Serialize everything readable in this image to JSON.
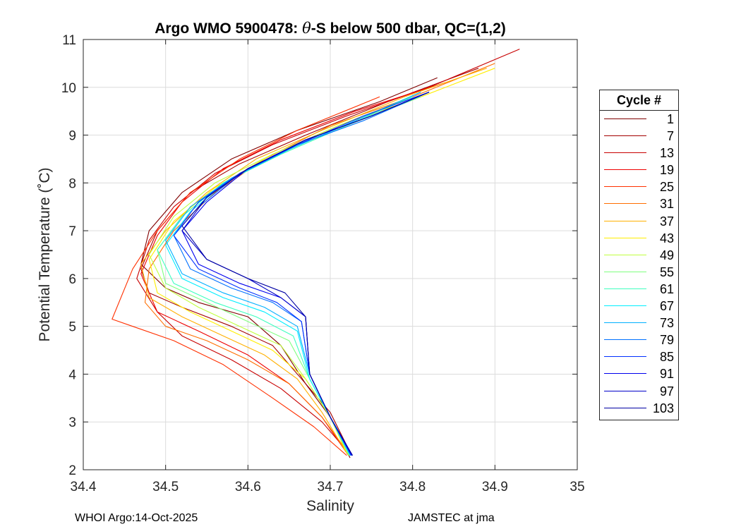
{
  "chart_data": {
    "type": "line",
    "title": "Argo WMO 5900478: θ-S below 500 dbar,  QC=(1,2)",
    "title_prefix": "Argo WMO 5900478: ",
    "title_theta": "θ",
    "title_suffix": "-S below 500 dbar,  QC=(1,2)",
    "xlabel": "Salinity",
    "ylabel": "Potential Temperature (˚C)",
    "xlim": [
      34.4,
      35.0
    ],
    "ylim": [
      2,
      11
    ],
    "xticks": [
      "34.4",
      "34.5",
      "34.6",
      "34.7",
      "34.8",
      "34.9",
      "35"
    ],
    "yticks": [
      "2",
      "3",
      "4",
      "5",
      "6",
      "7",
      "8",
      "9",
      "10",
      "11"
    ],
    "grid": true,
    "colormap": "jet",
    "legend_title": "Cycle #",
    "legend_position": "outside-right",
    "series": [
      {
        "name": "1",
        "color": "#800000",
        "s": [
          34.724,
          34.7,
          34.67,
          34.64,
          34.6,
          34.54,
          34.5,
          34.47,
          34.48,
          34.52,
          34.58,
          34.66,
          34.76,
          34.83
        ],
        "t": [
          2.25,
          3.1,
          3.8,
          4.6,
          5.2,
          5.5,
          5.8,
          6.3,
          7.0,
          7.8,
          8.5,
          9.1,
          9.7,
          10.2
        ]
      },
      {
        "name": "7",
        "color": "#a30000",
        "s": [
          34.726,
          34.7,
          34.665,
          34.63,
          34.58,
          34.52,
          34.48,
          34.47,
          34.49,
          34.53,
          34.59,
          34.67,
          34.77,
          34.88
        ],
        "t": [
          2.3,
          3.2,
          3.9,
          4.6,
          5.0,
          5.4,
          5.7,
          6.2,
          7.0,
          7.8,
          8.4,
          9.0,
          9.7,
          10.4
        ]
      },
      {
        "name": "13",
        "color": "#c80000",
        "s": [
          34.725,
          34.69,
          34.64,
          34.58,
          34.52,
          34.49,
          34.465,
          34.48,
          34.51,
          34.56,
          34.63,
          34.72,
          34.82,
          34.93
        ],
        "t": [
          2.3,
          3.0,
          3.7,
          4.3,
          4.8,
          5.3,
          6.0,
          6.8,
          7.5,
          8.2,
          8.8,
          9.4,
          10.0,
          10.8
        ]
      },
      {
        "name": "19",
        "color": "#ee0000",
        "s": [
          34.722,
          34.69,
          34.65,
          34.6,
          34.54,
          34.49,
          34.47,
          34.49,
          34.52,
          34.57,
          34.64,
          34.73,
          34.84
        ],
        "t": [
          2.3,
          3.1,
          3.8,
          4.4,
          4.9,
          5.3,
          6.1,
          6.9,
          7.6,
          8.3,
          8.9,
          9.5,
          10.1
        ]
      },
      {
        "name": "25",
        "color": "#ff3000",
        "s": [
          34.72,
          34.68,
          34.63,
          34.57,
          34.51,
          34.46,
          34.435,
          34.46,
          34.49,
          34.53,
          34.59,
          34.66,
          34.76
        ],
        "t": [
          2.3,
          2.9,
          3.5,
          4.2,
          4.7,
          5.0,
          5.15,
          6.2,
          7.0,
          7.8,
          8.5,
          9.1,
          9.8
        ]
      },
      {
        "name": "31",
        "color": "#ff6e00",
        "s": [
          34.72,
          34.69,
          34.65,
          34.6,
          34.55,
          34.5,
          34.475,
          34.48,
          34.51,
          34.56,
          34.62,
          34.7,
          34.8,
          34.9
        ],
        "t": [
          2.4,
          3.1,
          3.8,
          4.3,
          4.7,
          5.0,
          5.5,
          6.2,
          7.0,
          7.8,
          8.5,
          9.2,
          9.8,
          10.5
        ]
      },
      {
        "name": "37",
        "color": "#ffb000",
        "s": [
          34.718,
          34.69,
          34.66,
          34.62,
          34.57,
          34.52,
          34.48,
          34.47,
          34.5,
          34.55,
          34.61,
          34.69,
          34.79,
          34.89
        ],
        "t": [
          2.4,
          3.2,
          3.9,
          4.4,
          4.8,
          5.2,
          5.6,
          6.3,
          7.0,
          7.8,
          8.5,
          9.1,
          9.8,
          10.4
        ]
      },
      {
        "name": "43",
        "color": "#ffee00",
        "s": [
          34.72,
          34.7,
          34.67,
          34.63,
          34.58,
          34.53,
          34.49,
          34.48,
          34.51,
          34.56,
          34.63,
          34.71,
          34.81,
          34.9
        ],
        "t": [
          2.35,
          3.1,
          3.9,
          4.5,
          4.9,
          5.3,
          5.7,
          6.4,
          7.2,
          7.9,
          8.6,
          9.2,
          9.8,
          10.4
        ]
      },
      {
        "name": "49",
        "color": "#c0ff3f",
        "s": [
          34.722,
          34.7,
          34.67,
          34.64,
          34.59,
          34.54,
          34.5,
          34.48,
          34.51,
          34.56,
          34.63,
          34.71,
          34.8
        ],
        "t": [
          2.3,
          3.1,
          3.9,
          4.6,
          5.0,
          5.4,
          5.8,
          6.5,
          7.3,
          8.0,
          8.6,
          9.2,
          9.8
        ]
      },
      {
        "name": "55",
        "color": "#7fff7f",
        "s": [
          34.723,
          34.7,
          34.675,
          34.65,
          34.6,
          34.55,
          34.5,
          34.49,
          34.52,
          34.57,
          34.64,
          34.72,
          34.81
        ],
        "t": [
          2.3,
          3.1,
          3.9,
          4.7,
          5.1,
          5.5,
          5.9,
          6.6,
          7.3,
          8.0,
          8.6,
          9.2,
          9.8
        ]
      },
      {
        "name": "61",
        "color": "#3fffc0",
        "s": [
          34.724,
          34.7,
          34.675,
          34.655,
          34.61,
          34.56,
          34.51,
          34.49,
          34.52,
          34.57,
          34.64,
          34.72,
          34.8
        ],
        "t": [
          2.3,
          3.1,
          3.9,
          4.8,
          5.2,
          5.5,
          5.9,
          6.6,
          7.3,
          8.0,
          8.6,
          9.2,
          9.8
        ]
      },
      {
        "name": "67",
        "color": "#00eeff",
        "s": [
          34.724,
          34.7,
          34.675,
          34.66,
          34.62,
          34.57,
          34.52,
          34.5,
          34.53,
          34.58,
          34.65,
          34.73,
          34.81
        ],
        "t": [
          2.3,
          3.1,
          3.9,
          4.9,
          5.3,
          5.6,
          6.0,
          6.7,
          7.4,
          8.1,
          8.7,
          9.3,
          9.9
        ]
      },
      {
        "name": "73",
        "color": "#00b0ff",
        "s": [
          34.725,
          34.7,
          34.675,
          34.66,
          34.62,
          34.57,
          34.52,
          34.5,
          34.53,
          34.58,
          34.65,
          34.73,
          34.81
        ],
        "t": [
          2.3,
          3.1,
          4.0,
          5.0,
          5.4,
          5.7,
          6.1,
          6.8,
          7.5,
          8.1,
          8.7,
          9.3,
          9.9
        ]
      },
      {
        "name": "79",
        "color": "#0070ff",
        "s": [
          34.725,
          34.7,
          34.675,
          34.665,
          34.63,
          34.58,
          34.53,
          34.51,
          34.54,
          34.59,
          34.66,
          34.74,
          34.82
        ],
        "t": [
          2.3,
          3.1,
          4.0,
          5.1,
          5.5,
          5.8,
          6.2,
          6.9,
          7.5,
          8.2,
          8.8,
          9.3,
          9.9
        ]
      },
      {
        "name": "85",
        "color": "#0030ff",
        "s": [
          34.726,
          34.7,
          34.675,
          34.665,
          34.635,
          34.59,
          34.54,
          34.51,
          34.54,
          34.59,
          34.66,
          34.74,
          34.82
        ],
        "t": [
          2.3,
          3.1,
          4.0,
          5.1,
          5.5,
          5.8,
          6.2,
          6.9,
          7.6,
          8.2,
          8.8,
          9.4,
          9.9
        ]
      },
      {
        "name": "91",
        "color": "#0000ee",
        "s": [
          34.726,
          34.7,
          34.675,
          34.67,
          34.64,
          34.59,
          34.54,
          34.52,
          34.55,
          34.6,
          34.67,
          34.75,
          34.82
        ],
        "t": [
          2.3,
          3.1,
          4.0,
          5.2,
          5.6,
          5.9,
          6.3,
          7.0,
          7.6,
          8.3,
          8.9,
          9.4,
          9.9
        ]
      },
      {
        "name": "97",
        "color": "#0000c8",
        "s": [
          34.727,
          34.7,
          34.675,
          34.67,
          34.64,
          34.6,
          34.55,
          34.52,
          34.55,
          34.6,
          34.67,
          34.75,
          34.82
        ],
        "t": [
          2.3,
          3.1,
          4.0,
          5.2,
          5.6,
          6.0,
          6.4,
          7.0,
          7.7,
          8.3,
          8.9,
          9.4,
          9.9
        ]
      },
      {
        "name": "103",
        "color": "#0000a3",
        "s": [
          34.727,
          34.7,
          34.675,
          34.67,
          34.645,
          34.6,
          34.55,
          34.52,
          34.55,
          34.6,
          34.67,
          34.75,
          34.82
        ],
        "t": [
          2.3,
          3.1,
          4.0,
          5.2,
          5.7,
          6.0,
          6.4,
          7.1,
          7.7,
          8.3,
          8.9,
          9.4,
          9.9
        ]
      }
    ]
  },
  "footer": {
    "left": "WHOI Argo:14-Oct-2025",
    "right": "JAMSTEC at jma"
  }
}
